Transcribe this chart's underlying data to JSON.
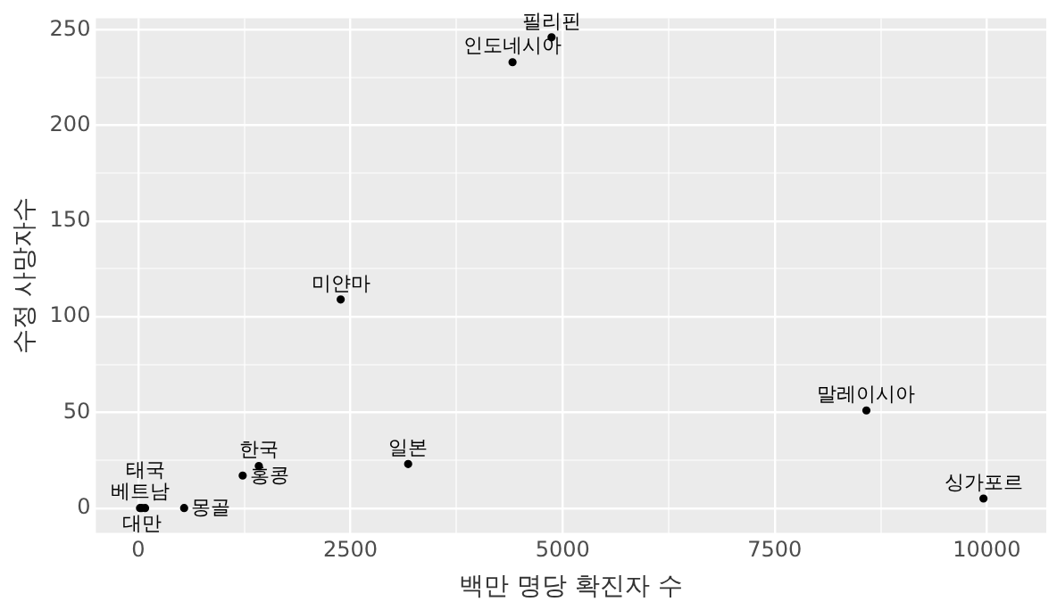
{
  "chart_data": {
    "type": "scatter",
    "xlabel": "백만 명당 확진자 수",
    "ylabel": "수정 사망자수",
    "x": [
      4870,
      4410,
      2385,
      8580,
      9960,
      3180,
      1420,
      1230,
      20,
      40,
      80,
      540
    ],
    "values": [
      246,
      233,
      109,
      51,
      5,
      23,
      22,
      17,
      0,
      0,
      0,
      0
    ],
    "value_labels": [
      "필리핀",
      "인도네시아",
      "미얀마",
      "말레이시아",
      "싱가포르",
      "일본",
      "한국",
      "홍콩",
      "베트남",
      "대만",
      "태국",
      "몽골"
    ],
    "color": "#000000",
    "marker": "circle",
    "grid": true,
    "xlim": [
      -500,
      10700
    ],
    "ylim": [
      -13,
      256
    ],
    "xticks": [
      0,
      {
        "value": 1250,
        "label": null
      },
      2500,
      {
        "value": 3750,
        "label": null
      },
      5000,
      {
        "value": 6250,
        "label": null
      },
      7500,
      {
        "value": 8750,
        "label": null
      },
      10000
    ],
    "yticks": [
      0,
      {
        "value": 25,
        "label": null
      },
      50,
      {
        "value": 75,
        "label": null
      },
      100,
      {
        "value": 125,
        "label": null
      },
      150,
      {
        "value": 175,
        "label": null
      },
      200,
      {
        "value": 225,
        "label": null
      },
      250
    ]
  }
}
